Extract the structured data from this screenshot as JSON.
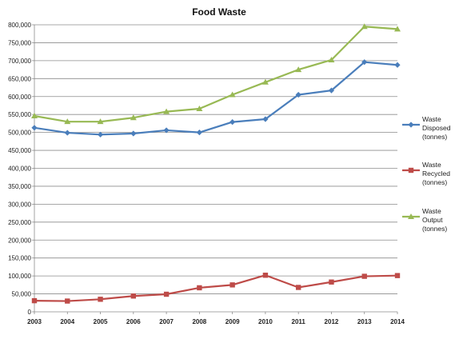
{
  "chart_data": {
    "type": "line",
    "title": "Food Waste",
    "xlabel": "",
    "ylabel": "",
    "x": [
      "2003",
      "2004",
      "2005",
      "2006",
      "2007",
      "2008",
      "2009",
      "2010",
      "2011",
      "2012",
      "2013",
      "2014"
    ],
    "ylim": [
      0,
      800000
    ],
    "yticks": [
      "0",
      "50,000",
      "100,000",
      "150,000",
      "200,000",
      "250,000",
      "300,000",
      "350,000",
      "400,000",
      "450,000",
      "500,000",
      "550,000",
      "600,000",
      "650,000",
      "700,000",
      "750,000",
      "800,000"
    ],
    "grid": "horizontal",
    "legend_position": "right",
    "series": [
      {
        "name": "Waste Disposed (tonnes)",
        "legend_lines": [
          "Waste",
          "Disposed",
          "(tonnes)"
        ],
        "color": "#4a7ebb",
        "marker": "diamond",
        "values": [
          513000,
          499000,
          494000,
          497000,
          506000,
          500000,
          529000,
          537000,
          605000,
          617000,
          696000,
          688000
        ]
      },
      {
        "name": "Waste Recycled (tonnes)",
        "legend_lines": [
          "Waste",
          "Recycled",
          "(tonnes)"
        ],
        "color": "#be4b48",
        "marker": "square",
        "values": [
          31000,
          30000,
          35000,
          44000,
          49000,
          67000,
          75000,
          102000,
          68000,
          83000,
          99000,
          101000
        ]
      },
      {
        "name": "Waste Output (tonnes)",
        "legend_lines": [
          "Waste",
          "Output",
          "(tonnes)"
        ],
        "color": "#98b954",
        "marker": "triangle",
        "values": [
          546000,
          530000,
          530000,
          541000,
          558000,
          566000,
          605000,
          640000,
          675000,
          702000,
          795000,
          788000
        ]
      }
    ]
  }
}
